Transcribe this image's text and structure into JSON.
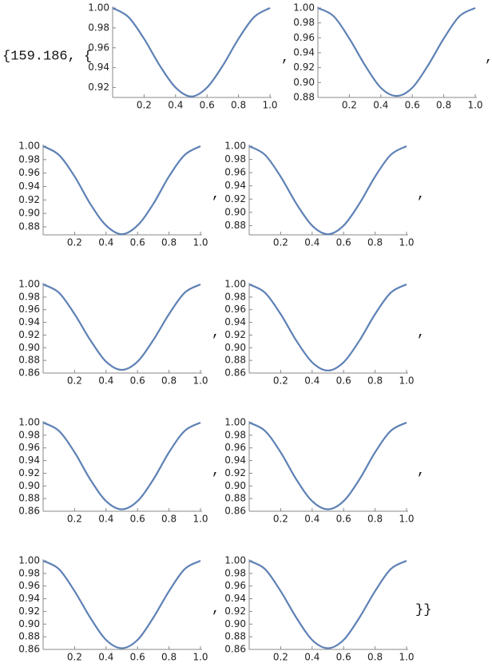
{
  "prefix": "{159.186, {",
  "separator": ",",
  "suffix": "}}",
  "chart_data": [
    {
      "type": "line",
      "x": [
        0,
        0.1,
        0.2,
        0.3,
        0.4,
        0.5,
        0.6,
        0.7,
        0.8,
        0.9,
        1
      ],
      "series": [
        {
          "color": "#5e81b5",
          "values": [
            1,
            0.991,
            0.969,
            0.942,
            0.92,
            0.911,
            0.92,
            0.942,
            0.969,
            0.991,
            1
          ]
        }
      ],
      "xlim": [
        0,
        1
      ],
      "ylim": [
        0.91,
        1
      ],
      "xticks": [
        0.2,
        0.4,
        0.6,
        0.8,
        {
          "value": 1,
          "label": "1.0"
        }
      ],
      "yticks": [
        0.92,
        0.94,
        0.96,
        0.98,
        {
          "value": 1,
          "label": "1.00"
        }
      ]
    },
    {
      "type": "line",
      "x": [
        0,
        0.1,
        0.2,
        0.3,
        0.4,
        0.5,
        0.6,
        0.7,
        0.8,
        0.9,
        1
      ],
      "series": [
        {
          "color": "#5e81b5",
          "values": [
            1,
            0.989,
            0.959,
            0.923,
            0.893,
            0.882,
            0.893,
            0.923,
            0.959,
            0.989,
            1
          ]
        }
      ],
      "xlim": [
        0,
        1
      ],
      "ylim": [
        0.88,
        1
      ],
      "xticks": [
        0.2,
        0.4,
        0.6,
        0.8,
        {
          "value": 1,
          "label": "1.0"
        }
      ],
      "yticks": [
        0.88,
        {
          "value": 0.9,
          "label": "0.90"
        },
        0.92,
        0.94,
        0.96,
        0.98,
        {
          "value": 1,
          "label": "1.00"
        }
      ]
    },
    {
      "type": "line",
      "x": [
        0,
        0.1,
        0.2,
        0.3,
        0.4,
        0.5,
        0.6,
        0.7,
        0.8,
        0.9,
        1
      ],
      "series": [
        {
          "color": "#5e81b5",
          "values": [
            1,
            0.987,
            0.955,
            0.914,
            0.882,
            0.869,
            0.882,
            0.914,
            0.955,
            0.987,
            1
          ]
        }
      ],
      "xlim": [
        0,
        1
      ],
      "ylim": [
        0.868,
        1
      ],
      "xticks": [
        0.2,
        0.4,
        0.6,
        0.8,
        {
          "value": 1,
          "label": "1.0"
        }
      ],
      "yticks": [
        0.88,
        {
          "value": 0.9,
          "label": "0.90"
        },
        0.92,
        0.94,
        0.96,
        0.98,
        {
          "value": 1,
          "label": "1.00"
        }
      ]
    },
    {
      "type": "line",
      "x": [
        0,
        0.1,
        0.2,
        0.3,
        0.4,
        0.5,
        0.6,
        0.7,
        0.8,
        0.9,
        1
      ],
      "series": [
        {
          "color": "#5e81b5",
          "values": [
            1,
            0.987,
            0.954,
            0.913,
            0.88,
            0.867,
            0.88,
            0.913,
            0.954,
            0.987,
            1
          ]
        }
      ],
      "xlim": [
        0,
        1
      ],
      "ylim": [
        0.866,
        1
      ],
      "xticks": [
        0.2,
        0.4,
        0.6,
        0.8,
        {
          "value": 1,
          "label": "1.0"
        }
      ],
      "yticks": [
        0.88,
        {
          "value": 0.9,
          "label": "0.90"
        },
        0.92,
        0.94,
        0.96,
        0.98,
        {
          "value": 1,
          "label": "1.00"
        }
      ]
    },
    {
      "type": "line",
      "x": [
        0,
        0.1,
        0.2,
        0.3,
        0.4,
        0.5,
        0.6,
        0.7,
        0.8,
        0.9,
        1
      ],
      "series": [
        {
          "color": "#5e81b5",
          "values": [
            1,
            0.987,
            0.953,
            0.912,
            0.878,
            0.865,
            0.878,
            0.912,
            0.953,
            0.987,
            1
          ]
        }
      ],
      "xlim": [
        0,
        1
      ],
      "ylim": [
        0.86,
        1
      ],
      "xticks": [
        0.2,
        0.4,
        0.6,
        0.8,
        {
          "value": 1,
          "label": "1.0"
        }
      ],
      "yticks": [
        0.86,
        0.88,
        {
          "value": 0.9,
          "label": "0.90"
        },
        0.92,
        0.94,
        0.96,
        0.98,
        {
          "value": 1,
          "label": "1.00"
        }
      ]
    },
    {
      "type": "line",
      "x": [
        0,
        0.1,
        0.2,
        0.3,
        0.4,
        0.5,
        0.6,
        0.7,
        0.8,
        0.9,
        1
      ],
      "series": [
        {
          "color": "#5e81b5",
          "values": [
            1,
            0.987,
            0.953,
            0.911,
            0.877,
            0.864,
            0.877,
            0.911,
            0.953,
            0.987,
            1
          ]
        }
      ],
      "xlim": [
        0,
        1
      ],
      "ylim": [
        0.86,
        1
      ],
      "xticks": [
        0.2,
        0.4,
        0.6,
        0.8,
        {
          "value": 1,
          "label": "1.0"
        }
      ],
      "yticks": [
        0.86,
        0.88,
        {
          "value": 0.9,
          "label": "0.90"
        },
        0.92,
        0.94,
        0.96,
        0.98,
        {
          "value": 1,
          "label": "1.00"
        }
      ]
    },
    {
      "type": "line",
      "x": [
        0,
        0.1,
        0.2,
        0.3,
        0.4,
        0.5,
        0.6,
        0.7,
        0.8,
        0.9,
        1
      ],
      "series": [
        {
          "color": "#5e81b5",
          "values": [
            1,
            0.987,
            0.953,
            0.91,
            0.876,
            0.863,
            0.876,
            0.91,
            0.953,
            0.987,
            1
          ]
        }
      ],
      "xlim": [
        0,
        1
      ],
      "ylim": [
        0.86,
        1
      ],
      "xticks": [
        0.2,
        0.4,
        0.6,
        0.8,
        {
          "value": 1,
          "label": "1.0"
        }
      ],
      "yticks": [
        0.86,
        0.88,
        {
          "value": 0.9,
          "label": "0.90"
        },
        0.92,
        0.94,
        0.96,
        0.98,
        {
          "value": 1,
          "label": "1.00"
        }
      ]
    },
    {
      "type": "line",
      "x": [
        0,
        0.1,
        0.2,
        0.3,
        0.4,
        0.5,
        0.6,
        0.7,
        0.8,
        0.9,
        1
      ],
      "series": [
        {
          "color": "#5e81b5",
          "values": [
            1,
            0.987,
            0.953,
            0.91,
            0.876,
            0.863,
            0.876,
            0.91,
            0.953,
            0.987,
            1
          ]
        }
      ],
      "xlim": [
        0,
        1
      ],
      "ylim": [
        0.86,
        1
      ],
      "xticks": [
        0.2,
        0.4,
        0.6,
        0.8,
        {
          "value": 1,
          "label": "1.0"
        }
      ],
      "yticks": [
        0.86,
        0.88,
        {
          "value": 0.9,
          "label": "0.90"
        },
        0.92,
        0.94,
        0.96,
        0.98,
        {
          "value": 1,
          "label": "1.00"
        }
      ]
    },
    {
      "type": "line",
      "x": [
        0,
        0.1,
        0.2,
        0.3,
        0.4,
        0.5,
        0.6,
        0.7,
        0.8,
        0.9,
        1
      ],
      "series": [
        {
          "color": "#5e81b5",
          "values": [
            1,
            0.987,
            0.952,
            0.91,
            0.875,
            0.862,
            0.875,
            0.91,
            0.952,
            0.987,
            1
          ]
        }
      ],
      "xlim": [
        0,
        1
      ],
      "ylim": [
        0.86,
        1
      ],
      "xticks": [
        0.2,
        0.4,
        0.6,
        0.8,
        {
          "value": 1,
          "label": "1.0"
        }
      ],
      "yticks": [
        0.86,
        0.88,
        {
          "value": 0.9,
          "label": "0.90"
        },
        0.92,
        0.94,
        0.96,
        0.98,
        {
          "value": 1,
          "label": "1.00"
        }
      ]
    },
    {
      "type": "line",
      "x": [
        0,
        0.1,
        0.2,
        0.3,
        0.4,
        0.5,
        0.6,
        0.7,
        0.8,
        0.9,
        1
      ],
      "series": [
        {
          "color": "#5e81b5",
          "values": [
            1,
            0.987,
            0.952,
            0.91,
            0.875,
            0.862,
            0.875,
            0.91,
            0.952,
            0.987,
            1
          ]
        }
      ],
      "xlim": [
        0,
        1
      ],
      "ylim": [
        0.86,
        1
      ],
      "xticks": [
        0.2,
        0.4,
        0.6,
        0.8,
        {
          "value": 1,
          "label": "1.0"
        }
      ],
      "yticks": [
        0.86,
        0.88,
        {
          "value": 0.9,
          "label": "0.90"
        },
        0.92,
        0.94,
        0.96,
        0.98,
        {
          "value": 1,
          "label": "1.00"
        }
      ]
    }
  ]
}
